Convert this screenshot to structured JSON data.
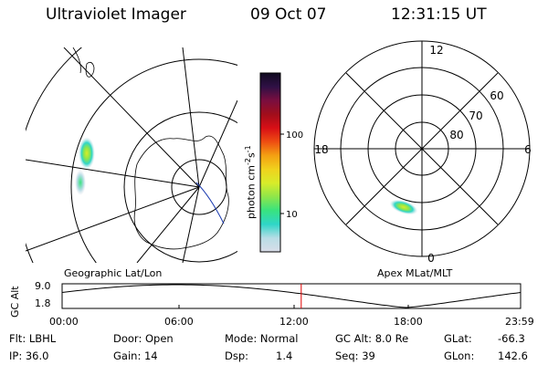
{
  "header": {
    "instrument": "Ultraviolet Imager",
    "date": "09 Oct 07",
    "time": "12:31:15 UT"
  },
  "colorbar": {
    "label": "photon cm",
    "label_exp": "-2",
    "label_s": "s",
    "label_s_exp": "-1",
    "tick_100": "100",
    "tick_10": "10",
    "stops": [
      "#d9dde8",
      "#b8dde6",
      "#2fd6c8",
      "#38e37f",
      "#8ee64a",
      "#d8ec2a",
      "#f0d21d",
      "#f4a012",
      "#ee4d12",
      "#d80f16",
      "#a10e1b",
      "#7a0e3f",
      "#2f1045",
      "#100a20"
    ]
  },
  "panels": {
    "left_title": "Geographic Lat/Lon",
    "right_title": "Apex MLat/MLT"
  },
  "polar": {
    "mlt_12": "12",
    "mlt_18": "18",
    "mlt_6": "6",
    "mlt_0": "0",
    "lat_60": "60",
    "lat_70": "70",
    "lat_80": "80"
  },
  "altitude_plot": {
    "ylabel": "GC Alt",
    "y_top": "9.0",
    "y_bottom": "1.8",
    "x_ticks": [
      "00:00",
      "06:00",
      "12:00",
      "18:00",
      "23:59"
    ],
    "marker_time": "12:31",
    "marker_color": "#e00000"
  },
  "status": {
    "flt": "Flt: LBHL",
    "ip": "IP: 36.0",
    "door": "Door: Open",
    "gain": "Gain: 14",
    "mode": "Mode: Normal",
    "dsp_label": "Dsp:",
    "dsp_value": "1.4",
    "gc_alt": "GC Alt: 8.0 Re",
    "seq": "Seq: 39",
    "glat_label": "GLat:",
    "glat_value": "-66.3",
    "glon_label": "GLon:",
    "glon_value": "142.6"
  }
}
